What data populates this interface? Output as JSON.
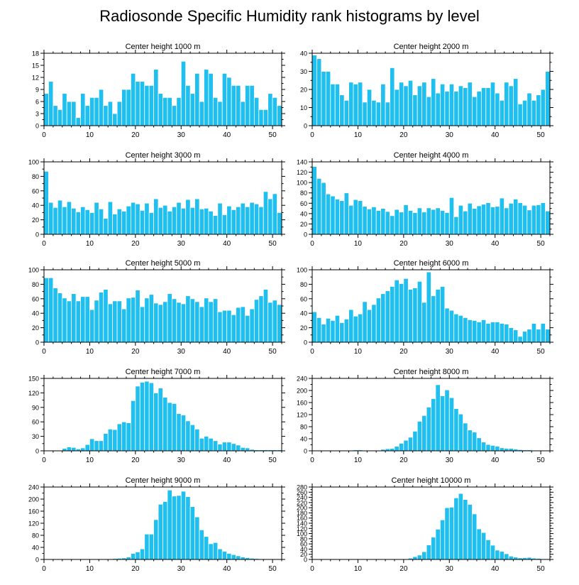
{
  "title": "Radiosonde Specific Humidity rank histograms by level",
  "colors": {
    "bar": "#1fbfef",
    "bar_edge": "#ffffff",
    "axis": "#000000"
  },
  "chart_data": [
    {
      "type": "bar",
      "title": "Center height 1000 m",
      "xlim": [
        0,
        52
      ],
      "xticks": [
        0,
        10,
        20,
        30,
        40,
        50
      ],
      "ylim": [
        0,
        18
      ],
      "yticks": [
        0,
        3,
        6,
        9,
        12,
        15,
        18
      ],
      "values": [
        8,
        11,
        5,
        4,
        8,
        6,
        6,
        2,
        8,
        5,
        7,
        7,
        9,
        5,
        6,
        3,
        6,
        9,
        9,
        13,
        11,
        11,
        10,
        10,
        14,
        8,
        7,
        7,
        5,
        7,
        16,
        10,
        8,
        13,
        6,
        14,
        13,
        7,
        6,
        13,
        12,
        10,
        10,
        6,
        10,
        10,
        7,
        4,
        4,
        8,
        7,
        5
      ]
    },
    {
      "type": "bar",
      "title": "Center height 2000 m",
      "xlim": [
        0,
        52
      ],
      "xticks": [
        0,
        10,
        20,
        30,
        40,
        50
      ],
      "ylim": [
        0,
        40
      ],
      "yticks": [
        0,
        10,
        20,
        30,
        40
      ],
      "values": [
        39,
        37,
        30,
        30,
        23,
        23,
        17,
        14,
        24,
        23,
        24,
        13,
        20,
        14,
        13,
        23,
        13,
        32,
        20,
        24,
        22,
        25,
        17,
        22,
        24,
        16,
        26,
        18,
        23,
        19,
        23,
        19,
        22,
        21,
        24,
        16,
        19,
        21,
        21,
        24,
        18,
        14,
        24,
        22,
        26,
        12,
        14,
        18,
        14,
        17,
        20,
        30
      ]
    },
    {
      "type": "bar",
      "title": "Center height 3000 m",
      "xlim": [
        0,
        52
      ],
      "xticks": [
        0,
        10,
        20,
        30,
        40,
        50
      ],
      "ylim": [
        0,
        100
      ],
      "yticks": [
        0,
        20,
        40,
        60,
        80,
        100
      ],
      "values": [
        87,
        44,
        37,
        47,
        38,
        45,
        36,
        31,
        38,
        34,
        30,
        44,
        35,
        22,
        45,
        28,
        35,
        32,
        39,
        44,
        42,
        33,
        43,
        30,
        49,
        37,
        40,
        32,
        38,
        44,
        36,
        48,
        37,
        49,
        35,
        36,
        32,
        26,
        43,
        27,
        39,
        34,
        38,
        43,
        38,
        44,
        42,
        38,
        59,
        49,
        56,
        30
      ]
    },
    {
      "type": "bar",
      "title": "Center height 4000 m",
      "xlim": [
        0,
        52
      ],
      "xticks": [
        0,
        10,
        20,
        30,
        40,
        50
      ],
      "ylim": [
        0,
        140
      ],
      "yticks": [
        0,
        20,
        40,
        60,
        80,
        100,
        120,
        140
      ],
      "values": [
        131,
        108,
        100,
        78,
        74,
        68,
        65,
        80,
        56,
        67,
        65,
        54,
        49,
        53,
        46,
        50,
        44,
        36,
        48,
        43,
        57,
        46,
        42,
        51,
        43,
        51,
        48,
        51,
        46,
        42,
        71,
        34,
        56,
        45,
        60,
        50,
        55,
        58,
        61,
        53,
        54,
        70,
        51,
        60,
        68,
        61,
        56,
        47,
        56,
        57,
        61,
        45
      ]
    },
    {
      "type": "bar",
      "title": "Center height 5000 m",
      "xlim": [
        0,
        52
      ],
      "xticks": [
        0,
        10,
        20,
        30,
        40,
        50
      ],
      "ylim": [
        0,
        100
      ],
      "yticks": [
        0,
        20,
        40,
        60,
        80,
        100
      ],
      "values": [
        89,
        89,
        75,
        68,
        61,
        57,
        67,
        57,
        63,
        63,
        45,
        58,
        69,
        73,
        53,
        57,
        57,
        46,
        61,
        62,
        72,
        49,
        61,
        66,
        54,
        52,
        56,
        67,
        60,
        55,
        53,
        64,
        60,
        56,
        49,
        61,
        56,
        60,
        42,
        44,
        44,
        38,
        48,
        49,
        37,
        46,
        59,
        64,
        73,
        55,
        58,
        52
      ]
    },
    {
      "type": "bar",
      "title": "Center height 6000 m",
      "xlim": [
        0,
        52
      ],
      "xticks": [
        0,
        10,
        20,
        30,
        40,
        50
      ],
      "ylim": [
        0,
        100
      ],
      "yticks": [
        0,
        20,
        40,
        60,
        80,
        100
      ],
      "values": [
        42,
        34,
        25,
        33,
        30,
        37,
        27,
        32,
        45,
        36,
        39,
        56,
        45,
        52,
        61,
        67,
        71,
        77,
        86,
        81,
        88,
        73,
        75,
        84,
        55,
        97,
        64,
        73,
        77,
        47,
        44,
        39,
        37,
        34,
        31,
        30,
        28,
        31,
        26,
        28,
        28,
        26,
        25,
        20,
        17,
        8,
        15,
        18,
        26,
        18,
        26,
        18
      ]
    },
    {
      "type": "bar",
      "title": "Center height 7000 m",
      "xlim": [
        0,
        52
      ],
      "xticks": [
        0,
        10,
        20,
        30,
        40,
        50
      ],
      "ylim": [
        0,
        150
      ],
      "yticks": [
        0,
        30,
        60,
        90,
        120,
        150
      ],
      "values": [
        0,
        0,
        0,
        0,
        5,
        8,
        7,
        4,
        6,
        13,
        25,
        21,
        21,
        36,
        45,
        44,
        56,
        60,
        58,
        104,
        134,
        142,
        144,
        141,
        120,
        130,
        111,
        100,
        98,
        77,
        74,
        62,
        54,
        45,
        26,
        30,
        26,
        21,
        14,
        18,
        18,
        15,
        12,
        7,
        6,
        3,
        2,
        2,
        2,
        2,
        2,
        2
      ]
    },
    {
      "type": "bar",
      "title": "Center height 8000 m",
      "xlim": [
        0,
        52
      ],
      "xticks": [
        0,
        10,
        20,
        30,
        40,
        50
      ],
      "ylim": [
        0,
        240
      ],
      "yticks": [
        0,
        40,
        80,
        120,
        160,
        200,
        240
      ],
      "values": [
        0,
        0,
        0,
        0,
        0,
        0,
        0,
        0,
        0,
        3,
        3,
        0,
        0,
        0,
        0,
        5,
        7,
        8,
        15,
        25,
        35,
        45,
        65,
        98,
        117,
        145,
        173,
        219,
        182,
        202,
        176,
        140,
        122,
        92,
        69,
        62,
        43,
        29,
        21,
        18,
        15,
        10,
        8,
        8,
        6,
        4,
        3,
        3,
        2,
        1,
        0,
        0
      ]
    },
    {
      "type": "bar",
      "title": "Center height 9000 m",
      "xlim": [
        0,
        52
      ],
      "xticks": [
        0,
        10,
        20,
        30,
        40,
        50
      ],
      "ylim": [
        0,
        240
      ],
      "yticks": [
        0,
        40,
        80,
        120,
        160,
        200,
        240
      ],
      "values": [
        0,
        0,
        0,
        0,
        0,
        0,
        0,
        0,
        0,
        0,
        0,
        0,
        0,
        0,
        2,
        3,
        4,
        5,
        8,
        20,
        25,
        35,
        84,
        84,
        132,
        183,
        192,
        230,
        210,
        212,
        226,
        208,
        175,
        141,
        98,
        76,
        52,
        56,
        35,
        27,
        20,
        16,
        12,
        8,
        6,
        4,
        3,
        2,
        1,
        0,
        0,
        0
      ]
    },
    {
      "type": "bar",
      "title": "Center height 10000 m",
      "xlim": [
        0,
        52
      ],
      "xticks": [
        0,
        10,
        20,
        30,
        40,
        50
      ],
      "ylim": [
        0,
        280
      ],
      "yticks": [
        0,
        20,
        40,
        60,
        80,
        100,
        120,
        140,
        160,
        180,
        200,
        220,
        240,
        260,
        280
      ],
      "values": [
        0,
        0,
        0,
        0,
        0,
        0,
        0,
        0,
        0,
        0,
        0,
        0,
        0,
        0,
        0,
        0,
        0,
        0,
        0,
        0,
        2,
        5,
        11,
        17,
        30,
        56,
        86,
        117,
        153,
        200,
        202,
        238,
        255,
        232,
        213,
        176,
        118,
        104,
        76,
        55,
        36,
        31,
        22,
        13,
        9,
        6,
        7,
        8,
        5,
        4,
        2,
        2
      ]
    }
  ]
}
